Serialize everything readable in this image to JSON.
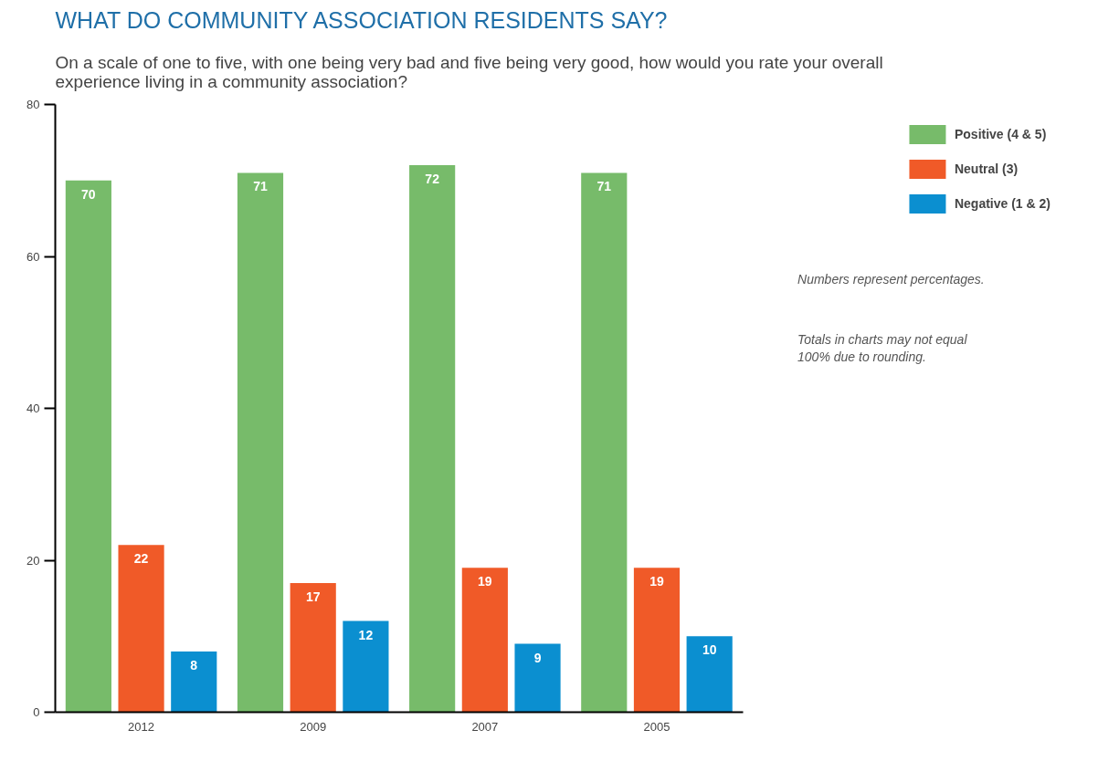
{
  "chart_data": {
    "type": "bar",
    "title": "WHAT DO COMMUNITY ASSOCIATION RESIDENTS SAY?",
    "subtitle": "On a scale of one to five, with one being very bad and five being very good, how would you rate your overall experience living in a community association?",
    "categories": [
      "2012",
      "2009",
      "2007",
      "2005"
    ],
    "series": [
      {
        "name": "Positive (4 & 5)",
        "color": "#77bb6a",
        "values": [
          70,
          71,
          72,
          71
        ]
      },
      {
        "name": "Neutral (3)",
        "color": "#f05a28",
        "values": [
          22,
          17,
          19,
          19
        ]
      },
      {
        "name": "Negative (1 & 2)",
        "color": "#0b8fd0",
        "values": [
          8,
          12,
          9,
          10
        ]
      }
    ],
    "ylim": [
      0,
      80
    ],
    "yticks": [
      0,
      20,
      40,
      60,
      80
    ],
    "grid": false,
    "legend": "top right",
    "data_labels": true,
    "annotations": [
      "Numbers represent percentages.",
      "Totals in charts may not equal 100% due to rounding."
    ]
  }
}
